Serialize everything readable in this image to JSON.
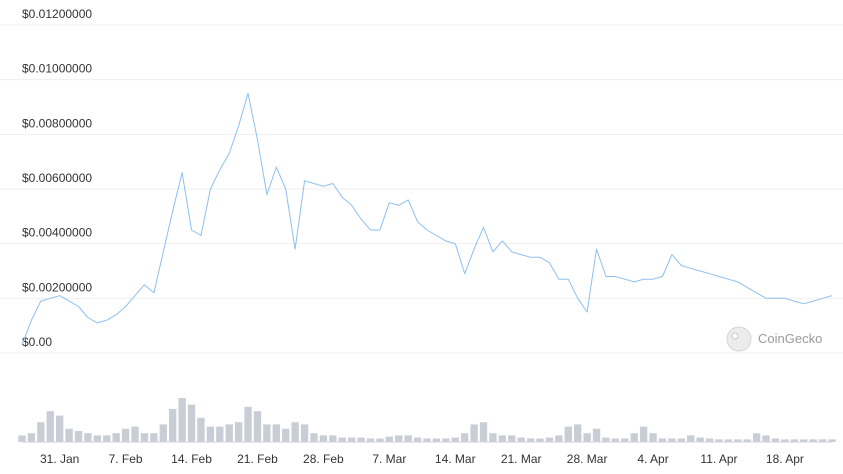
{
  "chart_data": {
    "type": "line",
    "title": "",
    "xlabel": "",
    "ylabel": "",
    "x_range": [
      "2021-01-27",
      "2021-04-23"
    ],
    "ylim": [
      0,
      0.012
    ],
    "y_ticks": [
      {
        "value": 0,
        "label": "$0.00"
      },
      {
        "value": 0.002,
        "label": "$0.00200000"
      },
      {
        "value": 0.004,
        "label": "$0.00400000"
      },
      {
        "value": 0.006,
        "label": "$0.00600000"
      },
      {
        "value": 0.008,
        "label": "$0.00800000"
      },
      {
        "value": 0.01,
        "label": "$0.01000000"
      },
      {
        "value": 0.012,
        "label": "$0.01200000"
      }
    ],
    "x_ticks": [
      {
        "date": "2021-01-31",
        "label": "31. Jan"
      },
      {
        "date": "2021-02-07",
        "label": "7. Feb"
      },
      {
        "date": "2021-02-14",
        "label": "14. Feb"
      },
      {
        "date": "2021-02-21",
        "label": "21. Feb"
      },
      {
        "date": "2021-02-28",
        "label": "28. Feb"
      },
      {
        "date": "2021-03-07",
        "label": "7. Mar"
      },
      {
        "date": "2021-03-14",
        "label": "14. Mar"
      },
      {
        "date": "2021-03-21",
        "label": "21. Mar"
      },
      {
        "date": "2021-03-28",
        "label": "28. Mar"
      },
      {
        "date": "2021-04-04",
        "label": "4. Apr"
      },
      {
        "date": "2021-04-11",
        "label": "11. Apr"
      },
      {
        "date": "2021-04-18",
        "label": "18. Apr"
      }
    ],
    "grid": true,
    "line_color": "#8dc0ef",
    "volume_color": "#c9ced6",
    "price": [
      [
        "2021-01-27",
        0.0003
      ],
      [
        "2021-01-28",
        0.0012
      ],
      [
        "2021-01-29",
        0.0019
      ],
      [
        "2021-01-30",
        0.002
      ],
      [
        "2021-01-31",
        0.0021
      ],
      [
        "2021-02-01",
        0.0019
      ],
      [
        "2021-02-02",
        0.0017
      ],
      [
        "2021-02-03",
        0.0013
      ],
      [
        "2021-02-04",
        0.0011
      ],
      [
        "2021-02-05",
        0.0012
      ],
      [
        "2021-02-06",
        0.0014
      ],
      [
        "2021-02-07",
        0.0017
      ],
      [
        "2021-02-08",
        0.0021
      ],
      [
        "2021-02-09",
        0.0025
      ],
      [
        "2021-02-10",
        0.0022
      ],
      [
        "2021-02-11",
        0.0037
      ],
      [
        "2021-02-12",
        0.0052
      ],
      [
        "2021-02-13",
        0.0066
      ],
      [
        "2021-02-14",
        0.0045
      ],
      [
        "2021-02-15",
        0.0043
      ],
      [
        "2021-02-16",
        0.006
      ],
      [
        "2021-02-17",
        0.0067
      ],
      [
        "2021-02-18",
        0.0073
      ],
      [
        "2021-02-19",
        0.0083
      ],
      [
        "2021-02-20",
        0.0095
      ],
      [
        "2021-02-21",
        0.0078
      ],
      [
        "2021-02-22",
        0.0058
      ],
      [
        "2021-02-23",
        0.0068
      ],
      [
        "2021-02-24",
        0.006
      ],
      [
        "2021-02-25",
        0.0038
      ],
      [
        "2021-02-26",
        0.0063
      ],
      [
        "2021-02-27",
        0.0062
      ],
      [
        "2021-02-28",
        0.0061
      ],
      [
        "2021-03-01",
        0.0062
      ],
      [
        "2021-03-02",
        0.0057
      ],
      [
        "2021-03-03",
        0.0054
      ],
      [
        "2021-03-04",
        0.0049
      ],
      [
        "2021-03-05",
        0.0045
      ],
      [
        "2021-03-06",
        0.0045
      ],
      [
        "2021-03-07",
        0.0055
      ],
      [
        "2021-03-08",
        0.0054
      ],
      [
        "2021-03-09",
        0.0056
      ],
      [
        "2021-03-10",
        0.0048
      ],
      [
        "2021-03-11",
        0.0045
      ],
      [
        "2021-03-12",
        0.0043
      ],
      [
        "2021-03-13",
        0.0041
      ],
      [
        "2021-03-14",
        0.004
      ],
      [
        "2021-03-15",
        0.0029
      ],
      [
        "2021-03-16",
        0.0038
      ],
      [
        "2021-03-17",
        0.0046
      ],
      [
        "2021-03-18",
        0.0037
      ],
      [
        "2021-03-19",
        0.0041
      ],
      [
        "2021-03-20",
        0.0037
      ],
      [
        "2021-03-21",
        0.0036
      ],
      [
        "2021-03-22",
        0.0035
      ],
      [
        "2021-03-23",
        0.0035
      ],
      [
        "2021-03-24",
        0.0033
      ],
      [
        "2021-03-25",
        0.0027
      ],
      [
        "2021-03-26",
        0.0027
      ],
      [
        "2021-03-27",
        0.002
      ],
      [
        "2021-03-28",
        0.0015
      ],
      [
        "2021-03-29",
        0.0038
      ],
      [
        "2021-03-30",
        0.0028
      ],
      [
        "2021-03-31",
        0.0028
      ],
      [
        "2021-04-01",
        0.0027
      ],
      [
        "2021-04-02",
        0.0026
      ],
      [
        "2021-04-03",
        0.0027
      ],
      [
        "2021-04-04",
        0.0027
      ],
      [
        "2021-04-05",
        0.0028
      ],
      [
        "2021-04-06",
        0.0036
      ],
      [
        "2021-04-07",
        0.0032
      ],
      [
        "2021-04-08",
        0.0031
      ],
      [
        "2021-04-09",
        0.003
      ],
      [
        "2021-04-10",
        0.0029
      ],
      [
        "2021-04-11",
        0.0028
      ],
      [
        "2021-04-12",
        0.0027
      ],
      [
        "2021-04-13",
        0.0026
      ],
      [
        "2021-04-14",
        0.0024
      ],
      [
        "2021-04-15",
        0.0022
      ],
      [
        "2021-04-16",
        0.002
      ],
      [
        "2021-04-17",
        0.002
      ],
      [
        "2021-04-18",
        0.002
      ],
      [
        "2021-04-19",
        0.0019
      ],
      [
        "2021-04-20",
        0.0018
      ],
      [
        "2021-04-21",
        0.0019
      ],
      [
        "2021-04-22",
        0.002
      ],
      [
        "2021-04-23",
        0.0021
      ]
    ],
    "volume_relative": [
      0.15,
      0.2,
      0.45,
      0.7,
      0.6,
      0.3,
      0.25,
      0.2,
      0.15,
      0.15,
      0.2,
      0.3,
      0.35,
      0.2,
      0.2,
      0.4,
      0.75,
      1.0,
      0.85,
      0.55,
      0.35,
      0.35,
      0.4,
      0.45,
      0.8,
      0.7,
      0.4,
      0.4,
      0.3,
      0.45,
      0.4,
      0.2,
      0.15,
      0.15,
      0.1,
      0.1,
      0.1,
      0.08,
      0.08,
      0.12,
      0.15,
      0.15,
      0.1,
      0.08,
      0.08,
      0.08,
      0.1,
      0.2,
      0.4,
      0.45,
      0.2,
      0.15,
      0.15,
      0.1,
      0.08,
      0.08,
      0.1,
      0.15,
      0.35,
      0.4,
      0.2,
      0.3,
      0.1,
      0.08,
      0.08,
      0.2,
      0.35,
      0.2,
      0.08,
      0.08,
      0.08,
      0.15,
      0.1,
      0.08,
      0.06,
      0.06,
      0.06,
      0.06,
      0.2,
      0.15,
      0.08,
      0.06,
      0.06,
      0.06,
      0.06,
      0.06,
      0.06
    ],
    "watermark": "CoinGecko"
  }
}
